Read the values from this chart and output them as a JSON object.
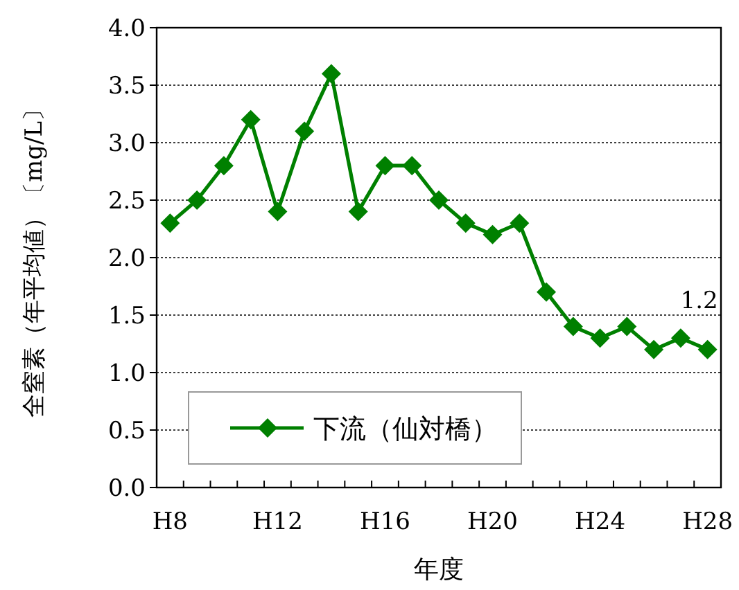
{
  "chart_data": {
    "type": "line",
    "xlabel": "年度",
    "ylabel": "全窒素（年平均値）〔mg/L〕",
    "categories": [
      "H8",
      null,
      null,
      null,
      "H12",
      null,
      null,
      null,
      "H16",
      null,
      null,
      null,
      "H20",
      null,
      null,
      null,
      "H24",
      null,
      null,
      null,
      "H28"
    ],
    "series": [
      {
        "name": "下流（仙対橋）",
        "color": "#008000",
        "values": [
          2.3,
          2.5,
          2.8,
          3.2,
          2.4,
          3.1,
          3.6,
          2.4,
          2.8,
          2.8,
          2.5,
          2.3,
          2.2,
          2.3,
          1.7,
          1.4,
          1.3,
          1.4,
          1.2,
          1.3,
          1.2
        ],
        "value_labels": [
          null,
          null,
          null,
          null,
          null,
          null,
          null,
          null,
          null,
          null,
          null,
          null,
          null,
          null,
          null,
          null,
          null,
          null,
          null,
          null,
          "1.2"
        ]
      }
    ],
    "ylim": [
      0,
      4
    ],
    "yticks": [
      {
        "value": 0,
        "label": "0.0"
      },
      {
        "value": 0.5,
        "label": "0.5"
      },
      {
        "value": 1,
        "label": "1.0"
      },
      {
        "value": 1.5,
        "label": "1.5"
      },
      {
        "value": 2,
        "label": "2.0"
      },
      {
        "value": 2.5,
        "label": "2.5"
      },
      {
        "value": 3,
        "label": "3.0"
      },
      {
        "value": 3.5,
        "label": "3.5"
      },
      {
        "value": 4,
        "label": "4.0"
      }
    ],
    "grid": "y",
    "legend": "bottom left",
    "marker": "diamond",
    "line_style": "solid"
  }
}
